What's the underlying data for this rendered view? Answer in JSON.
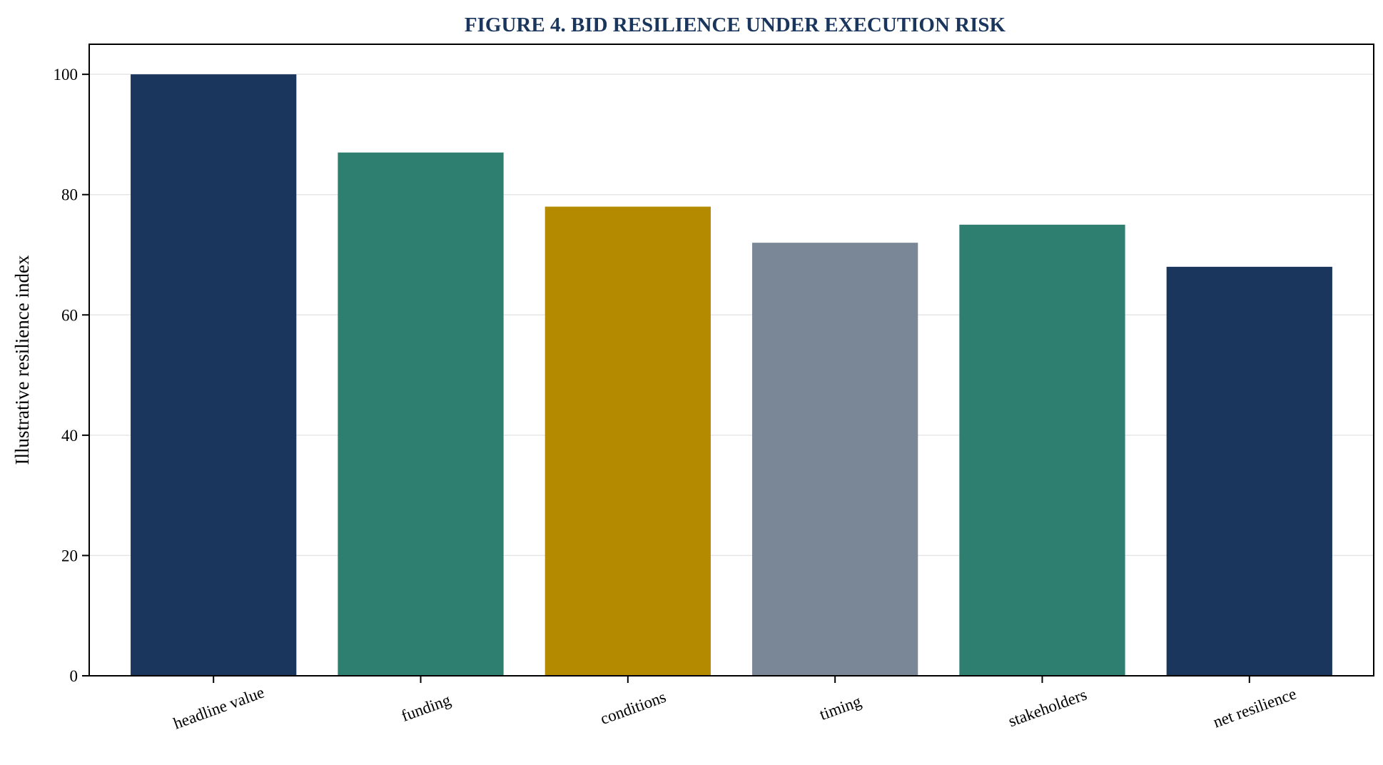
{
  "chart_data": {
    "type": "bar",
    "title": "FIGURE 4. BID RESILIENCE UNDER EXECUTION RISK",
    "xlabel": "",
    "ylabel": "Illustrative resilience index",
    "categories": [
      "headline value",
      "funding",
      "conditions",
      "timing",
      "stakeholders",
      "net resilience"
    ],
    "values": [
      100,
      87,
      78,
      72,
      75,
      68
    ],
    "colors": [
      "#1b365d",
      "#2e7f6f",
      "#b38a00",
      "#7a8796",
      "#2e7f6f",
      "#1b365d"
    ],
    "ylim": [
      0,
      105
    ],
    "yticks": [
      0,
      20,
      40,
      60,
      80,
      100
    ],
    "grid": true,
    "legend": "none"
  }
}
